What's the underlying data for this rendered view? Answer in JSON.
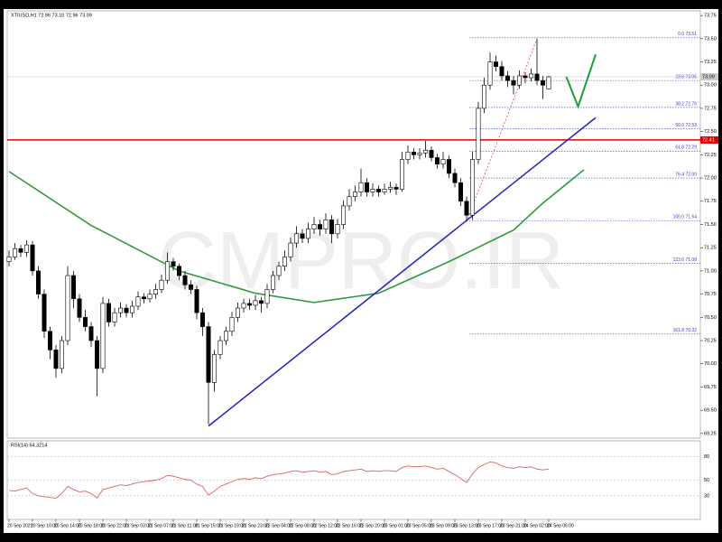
{
  "chart_data": [
    {
      "type": "candlestick",
      "title": "XTIUSD,H1 72.96 73.10 72.96 73.09",
      "watermark": "CMPRO.IR",
      "up_color": "#ffffff",
      "down_color": "#000000",
      "candles": [
        [
          71.1,
          71.22,
          71.05,
          71.15
        ],
        [
          71.15,
          71.3,
          71.12,
          71.24
        ],
        [
          71.24,
          71.28,
          71.15,
          71.2
        ],
        [
          71.2,
          71.33,
          71.15,
          71.28
        ],
        [
          71.28,
          71.32,
          70.95,
          71.0
        ],
        [
          71.0,
          71.05,
          70.7,
          70.75
        ],
        [
          70.75,
          70.8,
          70.28,
          70.35
        ],
        [
          70.35,
          70.4,
          70.05,
          70.15
        ],
        [
          70.15,
          70.2,
          69.85,
          69.95
        ],
        [
          69.95,
          70.3,
          69.9,
          70.25
        ],
        [
          70.25,
          71.05,
          70.2,
          70.95
        ],
        [
          70.95,
          71.0,
          70.6,
          70.7
        ],
        [
          70.7,
          70.75,
          70.45,
          70.5
        ],
        [
          70.5,
          70.58,
          70.35,
          70.4
        ],
        [
          70.4,
          70.45,
          70.18,
          70.25
        ],
        [
          70.25,
          70.3,
          69.65,
          69.95
        ],
        [
          69.95,
          70.72,
          69.9,
          70.65
        ],
        [
          70.65,
          70.7,
          70.4,
          70.45
        ],
        [
          70.45,
          70.6,
          70.4,
          70.55
        ],
        [
          70.55,
          70.66,
          70.5,
          70.6
        ],
        [
          70.6,
          70.64,
          70.5,
          70.55
        ],
        [
          70.55,
          70.68,
          70.5,
          70.62
        ],
        [
          70.62,
          70.78,
          70.58,
          70.72
        ],
        [
          70.72,
          70.76,
          70.65,
          70.7
        ],
        [
          70.7,
          70.8,
          70.66,
          70.75
        ],
        [
          70.75,
          70.86,
          70.7,
          70.8
        ],
        [
          70.8,
          70.96,
          70.76,
          70.9
        ],
        [
          70.9,
          71.2,
          70.86,
          71.1
        ],
        [
          71.1,
          71.14,
          71.0,
          71.05
        ],
        [
          71.05,
          71.08,
          70.9,
          70.95
        ],
        [
          70.95,
          71.0,
          70.8,
          70.85
        ],
        [
          70.85,
          70.9,
          70.75,
          70.8
        ],
        [
          70.8,
          70.84,
          70.48,
          70.55
        ],
        [
          70.55,
          70.6,
          70.3,
          70.4
        ],
        [
          70.4,
          70.45,
          69.35,
          69.8
        ],
        [
          69.8,
          70.15,
          69.7,
          70.1
        ],
        [
          70.1,
          70.3,
          70.05,
          70.25
        ],
        [
          70.25,
          70.4,
          70.2,
          70.35
        ],
        [
          70.35,
          70.56,
          70.3,
          70.5
        ],
        [
          70.5,
          70.66,
          70.45,
          70.6
        ],
        [
          70.6,
          70.7,
          70.55,
          70.65
        ],
        [
          70.65,
          70.7,
          70.58,
          70.63
        ],
        [
          70.63,
          70.74,
          70.58,
          70.68
        ],
        [
          70.68,
          70.72,
          70.55,
          70.65
        ],
        [
          70.65,
          70.86,
          70.6,
          70.8
        ],
        [
          70.8,
          71.0,
          70.76,
          70.95
        ],
        [
          70.95,
          71.1,
          70.9,
          71.05
        ],
        [
          71.05,
          71.22,
          71.0,
          71.15
        ],
        [
          71.15,
          71.36,
          71.1,
          71.3
        ],
        [
          71.3,
          71.48,
          71.25,
          71.4
        ],
        [
          71.4,
          71.45,
          71.3,
          71.35
        ],
        [
          71.35,
          71.52,
          71.3,
          71.45
        ],
        [
          71.45,
          71.58,
          71.4,
          71.5
        ],
        [
          71.5,
          71.55,
          71.38,
          71.45
        ],
        [
          71.45,
          71.62,
          71.4,
          71.55
        ],
        [
          71.55,
          71.6,
          71.3,
          71.4
        ],
        [
          71.4,
          71.56,
          71.35,
          71.5
        ],
        [
          71.5,
          71.76,
          71.45,
          71.7
        ],
        [
          71.7,
          71.88,
          71.65,
          71.8
        ],
        [
          71.8,
          71.92,
          71.75,
          71.85
        ],
        [
          71.85,
          72.1,
          71.8,
          71.95
        ],
        [
          71.95,
          72.0,
          71.8,
          71.85
        ],
        [
          71.85,
          71.94,
          71.8,
          71.88
        ],
        [
          71.88,
          71.92,
          71.8,
          71.85
        ],
        [
          71.85,
          71.94,
          71.82,
          71.88
        ],
        [
          71.88,
          71.96,
          71.84,
          71.9
        ],
        [
          71.9,
          71.94,
          71.82,
          71.88
        ],
        [
          71.88,
          72.28,
          71.85,
          72.2
        ],
        [
          72.2,
          72.35,
          72.15,
          72.28
        ],
        [
          72.28,
          72.32,
          72.2,
          72.25
        ],
        [
          72.25,
          72.32,
          72.2,
          72.27
        ],
        [
          72.27,
          72.4,
          72.22,
          72.3
        ],
        [
          72.3,
          72.34,
          72.18,
          72.22
        ],
        [
          72.22,
          72.26,
          72.1,
          72.15
        ],
        [
          72.15,
          72.28,
          72.1,
          72.2
        ],
        [
          72.2,
          72.24,
          72.0,
          72.05
        ],
        [
          72.05,
          72.1,
          71.9,
          71.95
        ],
        [
          71.95,
          72.0,
          71.7,
          71.75
        ],
        [
          71.75,
          71.8,
          71.53,
          71.6
        ],
        [
          71.6,
          72.28,
          71.55,
          72.2
        ],
        [
          72.2,
          72.82,
          72.15,
          72.75
        ],
        [
          72.75,
          73.08,
          72.7,
          73.0
        ],
        [
          73.0,
          73.35,
          72.95,
          73.25
        ],
        [
          73.25,
          73.32,
          73.15,
          73.2
        ],
        [
          73.2,
          73.26,
          73.05,
          73.1
        ],
        [
          73.1,
          73.15,
          72.98,
          73.05
        ],
        [
          73.05,
          73.1,
          72.9,
          73.0
        ],
        [
          73.0,
          73.16,
          72.96,
          73.1
        ],
        [
          73.1,
          73.14,
          73.02,
          73.08
        ],
        [
          73.08,
          73.18,
          73.04,
          73.12
        ],
        [
          73.12,
          73.5,
          73.0,
          73.05
        ],
        [
          73.05,
          73.1,
          72.85,
          73.0
        ],
        [
          72.96,
          73.1,
          72.96,
          73.09
        ]
      ],
      "ylim": [
        69.2,
        73.8
      ],
      "yticks": [
        69.25,
        {
          "value": 69.5,
          "label": "69.50"
        },
        69.75,
        {
          "value": 70,
          "label": "70.00"
        },
        70.25,
        {
          "value": 70.5,
          "label": "70.50"
        },
        70.75,
        {
          "value": 71,
          "label": "71.00"
        },
        71.25,
        {
          "value": 71.5,
          "label": "71.50"
        },
        71.75,
        {
          "value": 72,
          "label": "72.00"
        },
        72.25,
        {
          "value": 72.5,
          "label": "72.50"
        },
        72.75,
        {
          "value": 73,
          "label": "73.00"
        },
        73.25,
        {
          "value": 73.5,
          "label": "73.50"
        },
        73.75
      ],
      "last_price": 73.09,
      "hline": {
        "value": 72.41,
        "color": "#e00000"
      },
      "ma": {
        "x": [
          0,
          14,
          29,
          42,
          52,
          63,
          75,
          86,
          91,
          98
        ],
        "values": [
          72.07,
          71.49,
          71.0,
          70.76,
          70.66,
          70.76,
          71.1,
          71.44,
          71.73,
          72.09
        ],
        "color": "#2e9a3c"
      },
      "trendline": {
        "x": [
          34,
          100
        ],
        "values": [
          69.33,
          72.65
        ],
        "color": "#2020c0"
      },
      "fib_line": {
        "x": [
          78,
          90
        ],
        "values": [
          71.53,
          73.5
        ],
        "color": "#e04848"
      },
      "projection": {
        "x": [
          95,
          97,
          100
        ],
        "values": [
          73.09,
          72.77,
          73.33
        ],
        "color": "#1a9e3a"
      },
      "fib_color": "#3a3ad0",
      "fib_levels": [
        {
          "value": 73.51,
          "label": "0.0 73.51"
        },
        {
          "value": 73.05,
          "label": "23.6 73.05"
        },
        {
          "value": 72.76,
          "label": "38.2 72.76"
        },
        {
          "value": 72.53,
          "label": "50.0 72.53"
        },
        {
          "value": 72.29,
          "label": "61.8 72.29"
        },
        {
          "value": 72.0,
          "label": "76.4 72.00"
        },
        {
          "value": 71.54,
          "label": "100.0 71.54"
        },
        {
          "value": 71.08,
          "label": "123.6 71.08"
        },
        {
          "value": 70.32,
          "label": "161.8 70.32"
        }
      ]
    },
    {
      "type": "line",
      "title": "RSI(14) 64.3214",
      "color": "#e06060",
      "values": [
        37,
        36,
        38,
        40,
        33,
        30,
        29,
        28,
        27,
        33,
        42,
        38,
        35,
        36,
        33,
        27,
        38,
        40,
        42,
        44,
        43,
        45,
        47,
        48,
        49,
        50,
        52,
        56,
        55,
        53,
        51,
        50,
        45,
        42,
        31,
        36,
        42,
        45,
        48,
        51,
        52,
        51,
        53,
        52,
        55,
        57,
        58,
        59,
        61,
        62,
        60,
        61,
        62,
        60,
        61,
        57,
        58,
        61,
        62,
        63,
        64,
        61,
        62,
        61,
        62,
        62,
        61,
        66,
        68,
        67,
        67,
        68,
        66,
        64,
        65,
        61,
        57,
        52,
        47,
        58,
        66,
        70,
        73,
        72,
        68,
        66,
        65,
        67,
        66,
        67,
        64,
        63,
        64
      ],
      "ylim": [
        0,
        100
      ],
      "yticks": [
        30,
        50,
        80
      ],
      "xticks": [
        {
          "value": 0,
          "label": "20 Sep 2021"
        },
        {
          "value": 4,
          "label": "20 Sep 10:00"
        },
        {
          "value": 8,
          "label": "20 Sep 14:00"
        },
        {
          "value": 12,
          "label": "20 Sep 18:00"
        },
        {
          "value": 16,
          "label": "20 Sep 22:00"
        },
        {
          "value": 20,
          "label": "21 Sep 03:00"
        },
        {
          "value": 24,
          "label": "21 Sep 07:00"
        },
        {
          "value": 28,
          "label": "21 Sep 11:00"
        },
        {
          "value": 32,
          "label": "21 Sep 15:00"
        },
        {
          "value": 36,
          "label": "21 Sep 19:00"
        },
        {
          "value": 40,
          "label": "21 Sep 23:00"
        },
        {
          "value": 44,
          "label": "22 Sep 04:00"
        },
        {
          "value": 48,
          "label": "22 Sep 08:00"
        },
        {
          "value": 52,
          "label": "22 Sep 12:00"
        },
        {
          "value": 56,
          "label": "22 Sep 16:00"
        },
        {
          "value": 60,
          "label": "22 Sep 20:00"
        },
        {
          "value": 64,
          "label": "23 Sep 01:00"
        },
        {
          "value": 68,
          "label": "23 Sep 05:00"
        },
        {
          "value": 72,
          "label": "23 Sep 09:00"
        },
        {
          "value": 76,
          "label": "23 Sep 13:00"
        },
        {
          "value": 80,
          "label": "23 Sep 17:00"
        },
        {
          "value": 84,
          "label": "23 Sep 21:00"
        },
        {
          "value": 88,
          "label": "24 Sep 02:00"
        },
        {
          "value": 92,
          "label": "24 Sep 06:00"
        }
      ]
    }
  ]
}
